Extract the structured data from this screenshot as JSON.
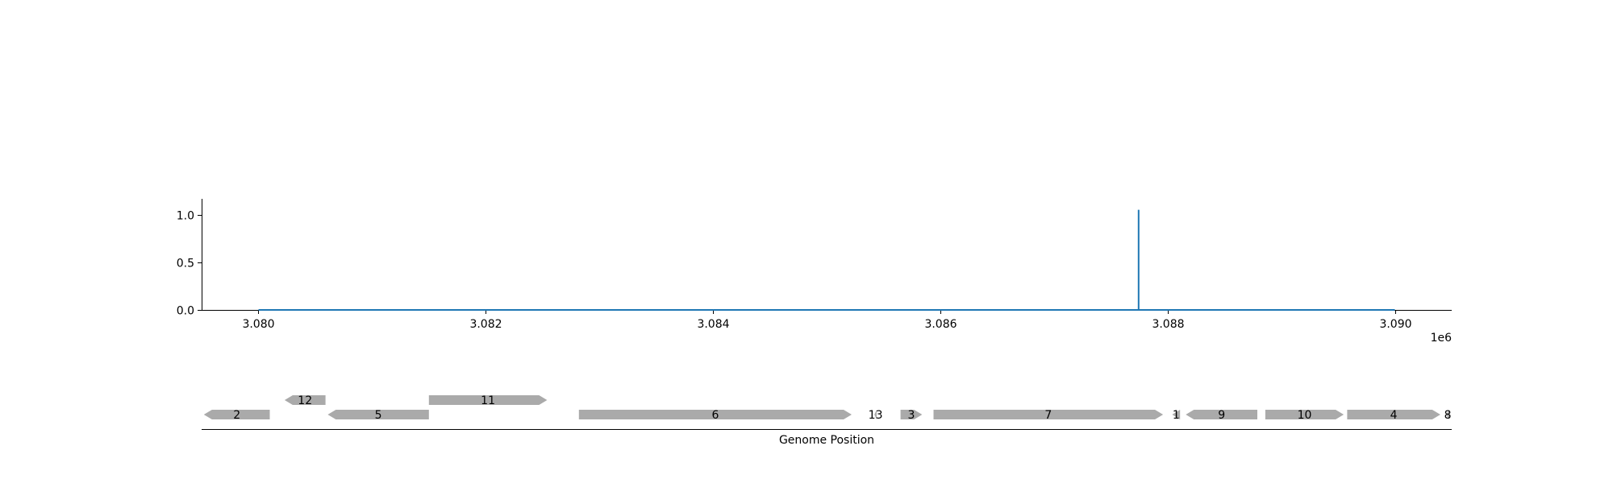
{
  "chart_data": [
    {
      "type": "line",
      "title": "",
      "xlabel": "",
      "ylabel": "",
      "x_offset_label": "1e6",
      "xlim": [
        3079500,
        3090500
      ],
      "ylim": [
        0,
        1.15
      ],
      "x_ticks": [
        3080000,
        3082000,
        3084000,
        3086000,
        3088000,
        3090000
      ],
      "x_tick_labels": [
        "3.080",
        "3.082",
        "3.084",
        "3.086",
        "3.088",
        "3.090"
      ],
      "y_ticks": [
        0.0,
        0.5,
        1.0
      ],
      "y_tick_labels": [
        "0.0",
        "0.5",
        "1.0"
      ],
      "grid": false,
      "color": "#1f77b4",
      "series": [
        {
          "x": [
            3080000,
            3087745,
            3087745,
            3087745,
            3087745,
            3090000
          ],
          "y": [
            0,
            0,
            1.05,
            1.05,
            0,
            0
          ]
        }
      ]
    },
    {
      "type": "gene-track",
      "xlabel": "Genome Position",
      "xlim": [
        3079500,
        3090500
      ],
      "color": "#aaaaaa",
      "genes": [
        {
          "label": "2",
          "start": 3079520,
          "end": 3080100,
          "strand": -1,
          "row": 0
        },
        {
          "label": "12",
          "start": 3080230,
          "end": 3080590,
          "strand": -1,
          "row": 1
        },
        {
          "label": "5",
          "start": 3080610,
          "end": 3081500,
          "strand": -1,
          "row": 0
        },
        {
          "label": "11",
          "start": 3081500,
          "end": 3082540,
          "strand": 1,
          "row": 1
        },
        {
          "label": "6",
          "start": 3082820,
          "end": 3085220,
          "strand": 1,
          "row": 0
        },
        {
          "label": "13",
          "start": 3085420,
          "end": 3085440,
          "strand": -1,
          "row": 0
        },
        {
          "label": "3",
          "start": 3085650,
          "end": 3085840,
          "strand": 1,
          "row": 0
        },
        {
          "label": "7",
          "start": 3085940,
          "end": 3087960,
          "strand": 1,
          "row": 0
        },
        {
          "label": "1",
          "start": 3088040,
          "end": 3088110,
          "strand": -1,
          "row": 0
        },
        {
          "label": "9",
          "start": 3088160,
          "end": 3088790,
          "strand": -1,
          "row": 0
        },
        {
          "label": "10",
          "start": 3088860,
          "end": 3089550,
          "strand": 1,
          "row": 0
        },
        {
          "label": "4",
          "start": 3089580,
          "end": 3090400,
          "strand": 1,
          "row": 0
        },
        {
          "label": "8",
          "start": 3090450,
          "end": 3090480,
          "strand": -1,
          "row": 0
        }
      ]
    }
  ]
}
